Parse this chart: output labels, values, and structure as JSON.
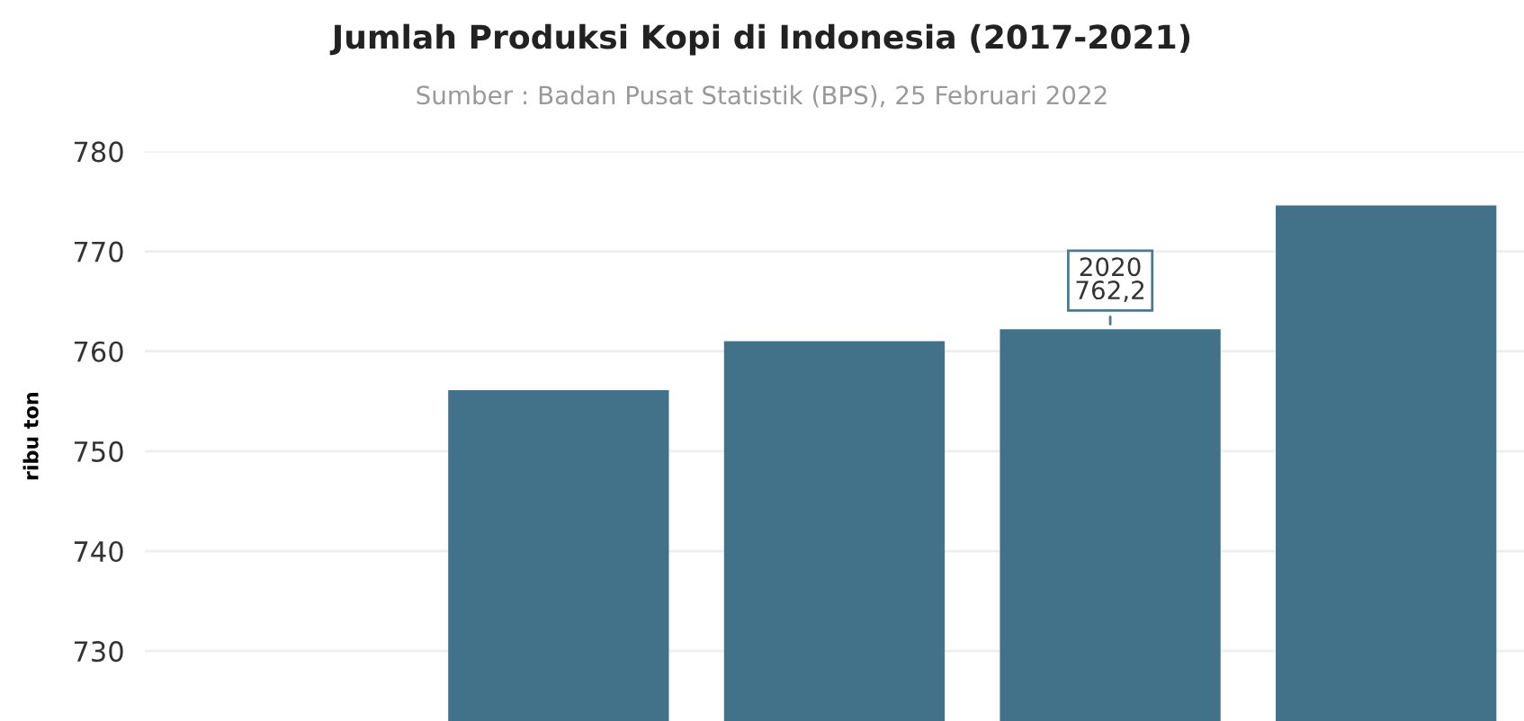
{
  "chart_data": {
    "type": "bar",
    "title": "Jumlah Produksi Kopi di Indonesia (2017-2021)",
    "subtitle": "Sumber : Badan Pusat Statistik (BPS), 25 Februari 2022",
    "ylabel": "ribu ton",
    "categories": [
      null,
      null,
      null,
      null,
      null
    ],
    "values": [
      null,
      756.1,
      761.0,
      762.2,
      774.6
    ],
    "annotations": [
      {
        "text": "2020\n762,2",
        "y": 762.2
      }
    ],
    "color": "#41728a",
    "ylim": [
      723,
      780
    ],
    "yticks": [
      730,
      740,
      750,
      760,
      770,
      780
    ],
    "grid": "y",
    "legend": false
  }
}
